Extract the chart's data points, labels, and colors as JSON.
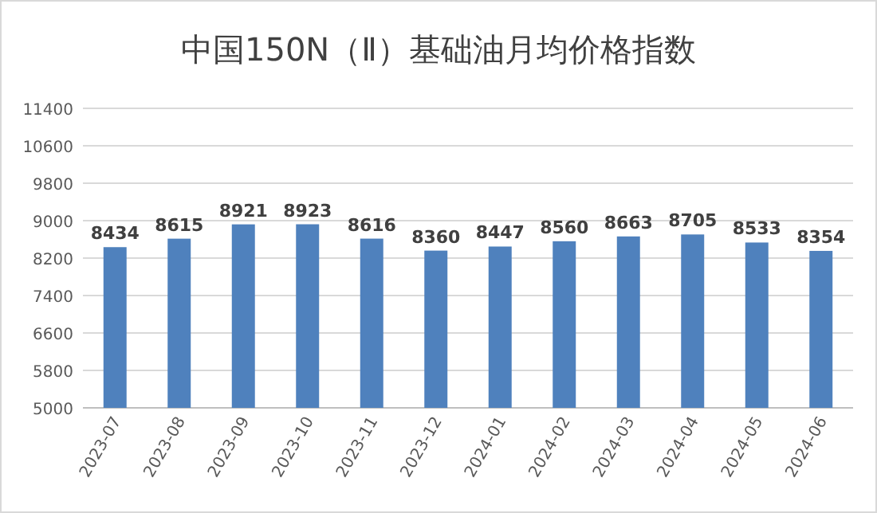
{
  "chart_data": {
    "type": "bar",
    "title": "中国150N（Ⅱ）基础油月均价格指数",
    "categories": [
      "2023-07",
      "2023-08",
      "2023-09",
      "2023-10",
      "2023-11",
      "2023-12",
      "2024-01",
      "2024-02",
      "2024-03",
      "2024-04",
      "2024-05",
      "2024-06"
    ],
    "values": [
      8434,
      8615,
      8921,
      8923,
      8616,
      8360,
      8447,
      8560,
      8663,
      8705,
      8533,
      8354
    ],
    "color": "#4f81bd",
    "ylim": [
      5000,
      11400
    ],
    "yticks": [
      5000,
      5800,
      6600,
      7400,
      8200,
      9000,
      9800,
      10600,
      11400
    ],
    "grid": "y",
    "data_labels": true
  }
}
